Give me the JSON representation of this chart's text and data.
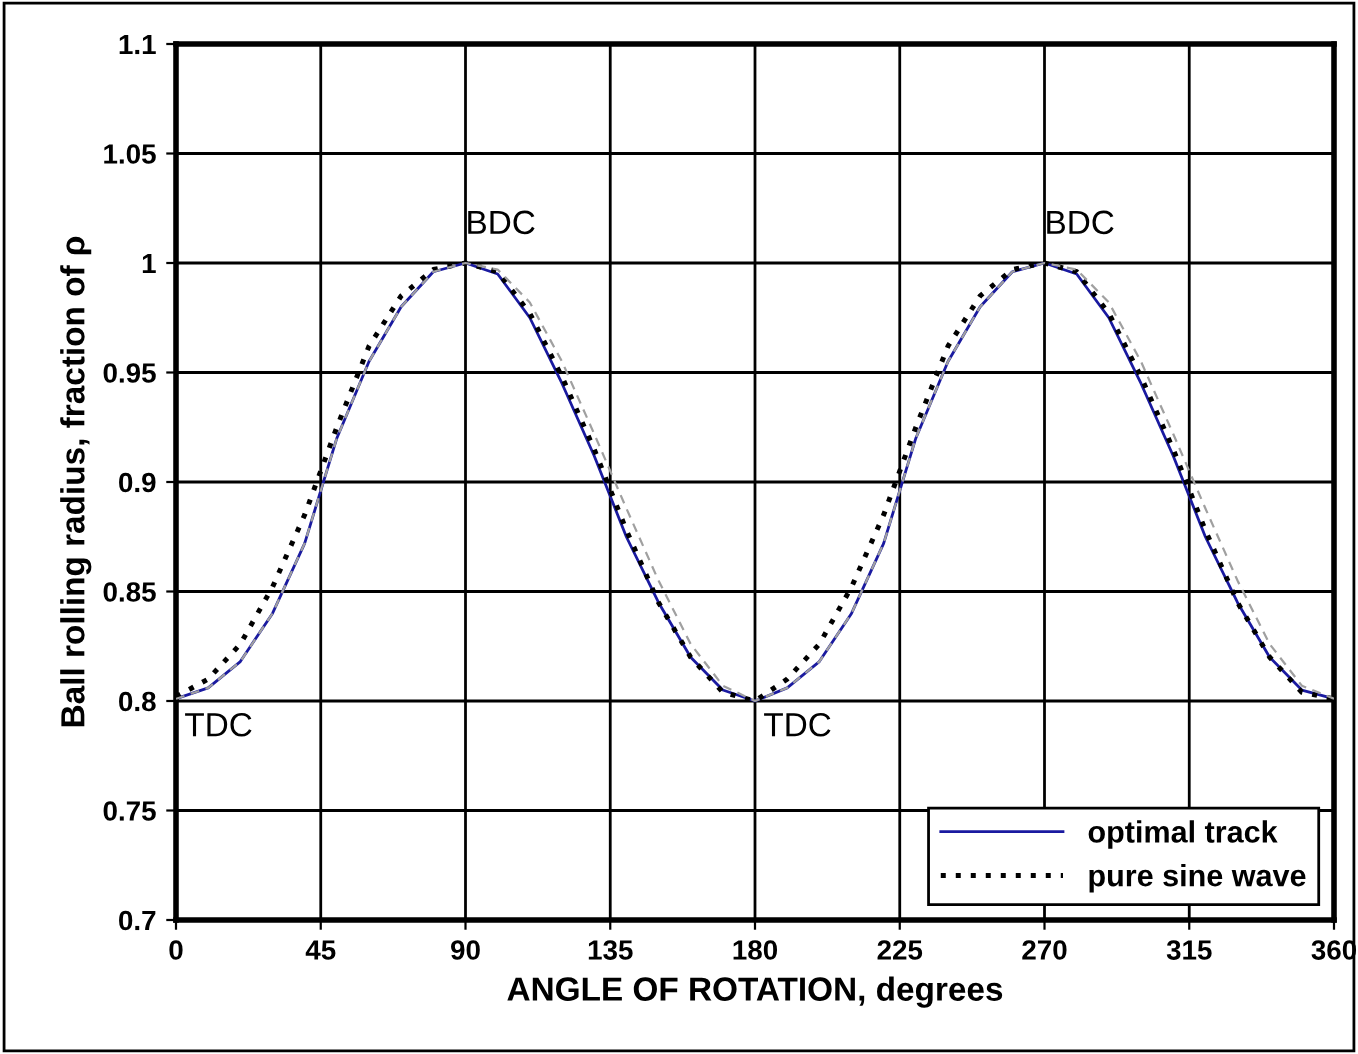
{
  "chart_data": {
    "type": "line",
    "xlabel": "ANGLE OF ROTATION, degrees",
    "ylabel": "Ball rolling radius, fraction of ρ",
    "x": [
      0,
      10,
      20,
      30,
      40,
      50,
      60,
      70,
      80,
      90,
      100,
      110,
      120,
      130,
      140,
      150,
      160,
      170,
      180,
      190,
      200,
      210,
      220,
      230,
      240,
      250,
      260,
      270,
      280,
      290,
      300,
      310,
      320,
      330,
      340,
      350,
      360
    ],
    "xlim": [
      0,
      360
    ],
    "xticks": [
      0,
      45,
      90,
      135,
      180,
      225,
      270,
      315,
      360
    ],
    "ylim": [
      0.7,
      1.1
    ],
    "yticks": [
      0.7,
      0.75,
      0.8,
      0.85,
      0.9,
      0.95,
      1,
      1.05,
      1.1
    ],
    "grid": true,
    "legend": "bottom right",
    "series": [
      {
        "color": "#a0a0a0",
        "line_style": "dashed",
        "values": [
          0.801,
          0.806,
          0.818,
          0.84,
          0.872,
          0.92,
          0.955,
          0.98,
          0.996,
          1.0,
          0.997,
          0.982,
          0.955,
          0.922,
          0.888,
          0.855,
          0.826,
          0.807,
          0.8,
          0.806,
          0.818,
          0.84,
          0.872,
          0.92,
          0.955,
          0.98,
          0.996,
          1.0,
          0.997,
          0.982,
          0.955,
          0.922,
          0.888,
          0.855,
          0.826,
          0.807,
          0.801
        ]
      },
      {
        "name": "optimal track",
        "color": "#1a1aa0",
        "line_style": "solid",
        "values": [
          0.801,
          0.806,
          0.818,
          0.84,
          0.872,
          0.92,
          0.955,
          0.98,
          0.996,
          1.0,
          0.995,
          0.975,
          0.945,
          0.912,
          0.875,
          0.845,
          0.82,
          0.805,
          0.8,
          0.806,
          0.818,
          0.84,
          0.872,
          0.92,
          0.955,
          0.98,
          0.996,
          1.0,
          0.995,
          0.975,
          0.945,
          0.912,
          0.875,
          0.845,
          0.82,
          0.805,
          0.801
        ]
      },
      {
        "name": "pure sine wave",
        "color": "#000000",
        "line_style": "dotted",
        "values": [
          0.802,
          0.81,
          0.826,
          0.852,
          0.885,
          0.925,
          0.962,
          0.985,
          0.997,
          1.0,
          0.996,
          0.977,
          0.948,
          0.915,
          0.878,
          0.845,
          0.82,
          0.804,
          0.8,
          0.81,
          0.826,
          0.852,
          0.885,
          0.925,
          0.962,
          0.985,
          0.997,
          1.0,
          0.996,
          0.977,
          0.948,
          0.915,
          0.878,
          0.845,
          0.82,
          0.804,
          0.801
        ]
      }
    ],
    "annotations": [
      {
        "text": "BDC",
        "x": 90,
        "y": 1.0
      },
      {
        "text": "BDC",
        "x": 270,
        "y": 1.0
      },
      {
        "text": "TDC",
        "x": 0,
        "y": 0.8
      },
      {
        "text": "TDC",
        "x": 180,
        "y": 0.8
      }
    ]
  }
}
